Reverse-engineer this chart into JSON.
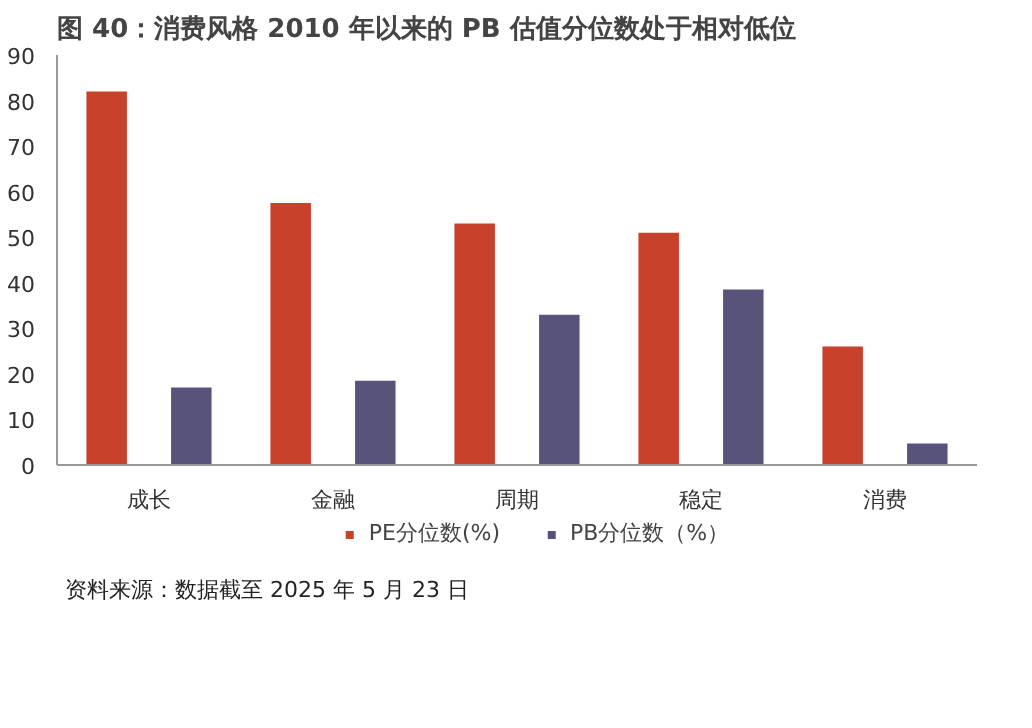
{
  "chart_data": {
    "type": "bar",
    "title": "图 40：消费风格 2010 年以来的 PB 估值分位数处于相对低位",
    "categories": [
      "成长",
      "金融",
      "周期",
      "稳定",
      "消费"
    ],
    "series": [
      {
        "name": "PE分位数(%)",
        "color": "#c8412a",
        "values": [
          82,
          57.5,
          53,
          51,
          26
        ]
      },
      {
        "name": "PB分位数（%）",
        "color": "#57537a",
        "values": [
          17,
          18.5,
          33,
          38.5,
          4.7
        ]
      }
    ],
    "ylim": [
      0,
      90
    ],
    "yticks": [
      0,
      10,
      20,
      30,
      40,
      50,
      60,
      70,
      80,
      90
    ],
    "grid": false,
    "legend": "bottom",
    "annotations": [
      "资料来源：数据截至 2025 年 5 月 23 日"
    ]
  }
}
